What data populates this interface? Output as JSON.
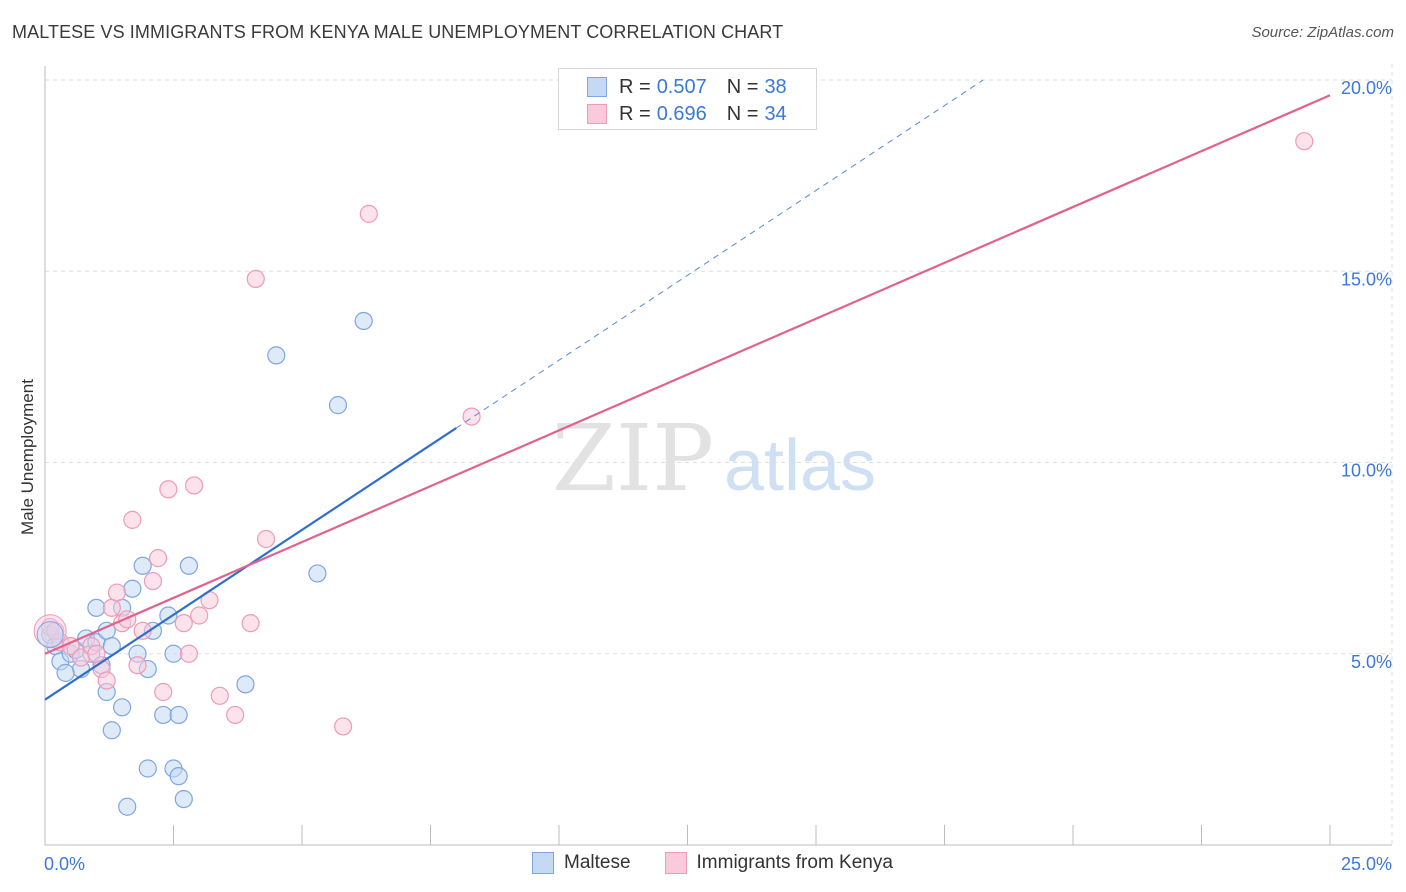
{
  "chart_data": {
    "type": "scatter",
    "title": "MALTESE VS IMMIGRANTS FROM KENYA MALE UNEMPLOYMENT CORRELATION CHART",
    "source": "Source: ZipAtlas.com",
    "xlabel": "",
    "ylabel": "Male Unemployment",
    "xlim": [
      0,
      25
    ],
    "ylim": [
      0,
      20
    ],
    "x_tick_labels": [
      "0.0%",
      "25.0%"
    ],
    "y_tick_labels": [
      "5.0%",
      "10.0%",
      "15.0%",
      "20.0%"
    ],
    "y_ticks": [
      5,
      10,
      15,
      20
    ],
    "watermark": {
      "zip": "ZIP",
      "atlas": "atlas"
    },
    "legend": {
      "rows": [
        {
          "r_label": "R =",
          "r_value": "0.507",
          "n_label": "N =",
          "n_value": "38"
        },
        {
          "r_label": "R =",
          "r_value": "0.696",
          "n_label": "N =",
          "n_value": "34"
        }
      ]
    },
    "series": [
      {
        "name": "Maltese",
        "color": "#7ea6e0",
        "fill": "#c5d8f4",
        "line_color": "#2f6fcc",
        "trend": {
          "x0": 0,
          "y0": 3.8,
          "x1": 8.0,
          "y1": 10.9,
          "dash_to_x": 25
        },
        "points": [
          [
            0.1,
            5.5
          ],
          [
            0.2,
            5.2
          ],
          [
            0.3,
            4.8
          ],
          [
            0.5,
            5.0
          ],
          [
            0.6,
            5.1
          ],
          [
            0.7,
            4.6
          ],
          [
            0.8,
            5.4
          ],
          [
            0.9,
            5.0
          ],
          [
            1.0,
            5.3
          ],
          [
            1.1,
            4.7
          ],
          [
            1.2,
            5.6
          ],
          [
            1.3,
            5.2
          ],
          [
            1.0,
            6.2
          ],
          [
            1.5,
            6.2
          ],
          [
            1.7,
            6.7
          ],
          [
            1.8,
            5.0
          ],
          [
            1.9,
            7.3
          ],
          [
            2.0,
            4.6
          ],
          [
            2.1,
            5.6
          ],
          [
            1.2,
            4.0
          ],
          [
            1.5,
            3.6
          ],
          [
            1.3,
            3.0
          ],
          [
            2.0,
            2.0
          ],
          [
            1.6,
            1.0
          ],
          [
            2.3,
            3.4
          ],
          [
            2.4,
            6.0
          ],
          [
            2.5,
            5.0
          ],
          [
            2.5,
            2.0
          ],
          [
            2.6,
            3.4
          ],
          [
            2.6,
            1.8
          ],
          [
            2.7,
            1.2
          ],
          [
            2.8,
            7.3
          ],
          [
            3.9,
            4.2
          ],
          [
            4.5,
            12.8
          ],
          [
            5.3,
            7.1
          ],
          [
            5.7,
            11.5
          ],
          [
            6.2,
            13.7
          ],
          [
            0.4,
            4.5
          ]
        ]
      },
      {
        "name": "Immigrants from Kenya",
        "color": "#ee9ab8",
        "fill": "#f8cadb",
        "line_color": "#e0628d",
        "trend": {
          "x0": 0,
          "y0": 5.0,
          "x1": 25,
          "y1": 19.6
        },
        "points": [
          [
            0.1,
            5.7
          ],
          [
            0.3,
            5.3
          ],
          [
            0.5,
            5.2
          ],
          [
            0.7,
            4.9
          ],
          [
            0.9,
            5.2
          ],
          [
            1.0,
            5.0
          ],
          [
            1.1,
            4.6
          ],
          [
            1.2,
            4.3
          ],
          [
            1.3,
            6.2
          ],
          [
            1.4,
            6.6
          ],
          [
            1.5,
            5.8
          ],
          [
            1.6,
            5.9
          ],
          [
            1.7,
            8.5
          ],
          [
            1.8,
            4.7
          ],
          [
            1.9,
            5.6
          ],
          [
            2.1,
            6.9
          ],
          [
            2.2,
            7.5
          ],
          [
            2.3,
            4.0
          ],
          [
            2.4,
            9.3
          ],
          [
            2.7,
            5.8
          ],
          [
            2.8,
            5.0
          ],
          [
            2.9,
            9.4
          ],
          [
            3.0,
            6.0
          ],
          [
            3.2,
            6.4
          ],
          [
            3.4,
            3.9
          ],
          [
            3.7,
            3.4
          ],
          [
            4.0,
            5.8
          ],
          [
            4.1,
            14.8
          ],
          [
            4.3,
            8.0
          ],
          [
            5.8,
            3.1
          ],
          [
            6.3,
            16.5
          ],
          [
            8.3,
            11.2
          ],
          [
            24.5,
            18.4
          ],
          [
            0.2,
            5.6
          ]
        ]
      }
    ]
  }
}
